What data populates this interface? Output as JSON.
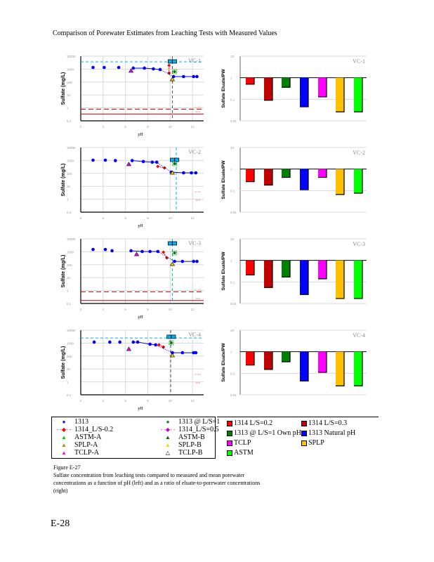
{
  "page_title": "Comparison of Porewater Estimates from Leaching Tests with Measured Values",
  "page_number": "E-28",
  "caption": {
    "figure": "Figure E-27",
    "text": "Sulfate concentration from leaching tests compared to measured and mean porewater concentrations as a function of pH (left) and as a ratio of eluate-to-porewater concentrations (right)"
  },
  "colors": {
    "1313": "#0000ff",
    "1314_02": "#ff0000",
    "1314_03": "#c00000",
    "own_ph": "#008000",
    "tclp": "#ff00ff",
    "splp": "#ffc000",
    "astm": "#00ff00",
    "porewater": "#00b0f0",
    "limits": "#c00000"
  },
  "legend_left": [
    {
      "label": "1313",
      "symbol": "●",
      "color": "#0000ff"
    },
    {
      "label": "1313 @ L/S=1",
      "symbol": "●",
      "color": "#008000"
    },
    {
      "label": "1314_L/S-0.2",
      "symbol": "- -◆- -",
      "color": "#ff0000"
    },
    {
      "label": "1314_L/S=0.5",
      "symbol": "- -◆- -",
      "color": "#cc00cc"
    },
    {
      "label": "ASTM-A",
      "symbol": "▲",
      "color": "#00cc00"
    },
    {
      "label": "ASTM-B",
      "symbol": "▲",
      "color": "#006000"
    },
    {
      "label": "SPLP-A",
      "symbol": "▲",
      "color": "#c08000"
    },
    {
      "label": "SPLP-B",
      "symbol": "▲",
      "color": "#e0e000"
    },
    {
      "label": "TCLP-A",
      "symbol": "▲",
      "color": "#ff00ff"
    },
    {
      "label": "TCLP-B",
      "symbol": "△",
      "color": "#000000"
    }
  ],
  "legend_right": [
    {
      "label": "1314 L/S=0.2",
      "color": "#ff0000"
    },
    {
      "label": "1314 L/S=0.3",
      "color": "#c00000"
    },
    {
      "label": "1313 @ L/S=1 Own pH",
      "color": "#008000"
    },
    {
      "label": "1313 Natural pH",
      "color": "#0000ff"
    },
    {
      "label": "TCLP",
      "color": "#ff00ff"
    },
    {
      "label": "SPLP",
      "color": "#ffc000"
    },
    {
      "label": "ASTM",
      "color": "#00ff00"
    }
  ],
  "chart_data": [
    {
      "type": "scatter",
      "panel": "VC-1",
      "xlabel": "pH",
      "ylabel": "Sulfate (mg/L)",
      "xlim": [
        2,
        13
      ],
      "ylim": [
        0.1,
        10000
      ],
      "yscale": "log",
      "grid": true,
      "x_ticks": [
        2,
        4,
        6,
        8,
        10,
        12
      ],
      "y_ticks": [
        0.1,
        1,
        10,
        100,
        1000,
        10000
      ],
      "measured_porewater": 3700,
      "natural_ph": 10.2,
      "loq": 0.8,
      "mdl": 0.34,
      "loq_label": "LLOQ",
      "mdl_label": "MDL",
      "series": [
        {
          "name": "1313",
          "points": [
            [
              3.1,
              1350
            ],
            [
              4.1,
              1350
            ],
            [
              5.4,
              1350
            ],
            [
              6.7,
              1200
            ],
            [
              7.7,
              1200
            ],
            [
              8.5,
              1050
            ],
            [
              9.1,
              930
            ],
            [
              10.3,
              265
            ],
            [
              11.2,
              265
            ],
            [
              12.1,
              265
            ],
            [
              12.4,
              265
            ]
          ]
        },
        {
          "name": "1314_L/S-0.2",
          "points": [
            [
              9.9,
              1950
            ],
            [
              9.9,
              500
            ]
          ]
        },
        {
          "name": "1313 @ L/S=1",
          "points": [
            [
              10.4,
              640
            ]
          ]
        },
        {
          "name": "TCLP-A",
          "points": [
            [
              6.5,
              730
            ]
          ]
        },
        {
          "name": "SPLP-B",
          "points": [
            [
              10.2,
              160
            ]
          ]
        },
        {
          "name": "porewater",
          "points": [
            [
              10.0,
              3700
            ],
            [
              10.4,
              3700
            ]
          ]
        }
      ]
    },
    {
      "type": "scatter",
      "panel": "VC-2",
      "xlabel": "pH",
      "ylabel": "Sulfate (mg/L)",
      "xlim": [
        2,
        13
      ],
      "ylim": [
        0.1,
        10000
      ],
      "yscale": "log",
      "grid": true,
      "x_ticks": [
        2,
        4,
        6,
        8,
        10,
        12
      ],
      "y_ticks": [
        0.1,
        1,
        10,
        100,
        1000,
        10000
      ],
      "measured_porewater": null,
      "natural_ph": 10.55,
      "loq": null,
      "mdl": null,
      "loq_label": "LLOQ",
      "mdl_label": "MDL",
      "series": [
        {
          "name": "1313",
          "points": [
            [
              3.1,
              1050
            ],
            [
              4.2,
              1050
            ],
            [
              5.1,
              980
            ],
            [
              6.6,
              980
            ],
            [
              7.6,
              820
            ],
            [
              8.4,
              730
            ],
            [
              8.8,
              730
            ],
            [
              10.1,
              125
            ],
            [
              11.2,
              110
            ],
            [
              11.9,
              110
            ],
            [
              12.3,
              110
            ]
          ]
        },
        {
          "name": "1314_L/S-0.2",
          "points": [
            [
              8.9,
              340
            ],
            [
              9.5,
              265
            ]
          ]
        },
        {
          "name": "1313 @ L/S=1",
          "points": [
            [
              10.4,
              560
            ]
          ]
        },
        {
          "name": "TCLP-A",
          "points": [
            [
              6.3,
              500
            ]
          ]
        },
        {
          "name": "SPLP-B",
          "points": [
            [
              10.2,
              110
            ]
          ]
        },
        {
          "name": "porewater",
          "points": [
            [
              10.2,
              1050
            ],
            [
              10.6,
              1050
            ]
          ]
        }
      ]
    },
    {
      "type": "scatter",
      "panel": "VC-3",
      "xlabel": "pH",
      "ylabel": "Sulfate (mg/L)",
      "xlim": [
        2,
        13
      ],
      "ylim": [
        0.1,
        10000
      ],
      "yscale": "log",
      "grid": true,
      "x_ticks": [
        2,
        4,
        6,
        8,
        10,
        12
      ],
      "y_ticks": [
        0.1,
        1,
        10,
        100,
        1000,
        10000
      ],
      "measured_porewater": null,
      "natural_ph": 10.2,
      "loq": 0.8,
      "mdl": 0.17,
      "loq_label": "LLOQ",
      "mdl_label": "MDL",
      "series": [
        {
          "name": "1313",
          "points": [
            [
              3.1,
              1500
            ],
            [
              4.2,
              1500
            ],
            [
              4.8,
              1200
            ],
            [
              6.5,
              1200
            ],
            [
              7.5,
              1050
            ],
            [
              8.2,
              1050
            ],
            [
              8.9,
              1050
            ],
            [
              10.4,
              180
            ],
            [
              11.1,
              180
            ],
            [
              12.1,
              180
            ],
            [
              12.4,
              180
            ]
          ]
        },
        {
          "name": "1314_L/S-0.2",
          "points": [
            [
              9.4,
              930
            ],
            [
              9.7,
              340
            ]
          ]
        },
        {
          "name": "1313 @ L/S=1",
          "points": [
            [
              10.4,
              820
            ]
          ]
        },
        {
          "name": "TCLP-A",
          "points": [
            [
              7.0,
              630
            ]
          ]
        },
        {
          "name": "SPLP-B",
          "points": [
            [
              10.2,
              110
            ]
          ]
        },
        {
          "name": "porewater",
          "points": [
            [
              10.0,
              4200
            ],
            [
              10.4,
              4200
            ]
          ]
        }
      ]
    },
    {
      "type": "scatter",
      "panel": "VC-4",
      "xlabel": "pH",
      "ylabel": "Sulfate (mg/L)",
      "xlim": [
        2,
        13
      ],
      "ylim": [
        0.1,
        10000
      ],
      "yscale": "log",
      "grid": true,
      "x_ticks": [
        2,
        4,
        6,
        8,
        10,
        12
      ],
      "y_ticks": [
        0.1,
        1,
        10,
        100,
        1000,
        10000
      ],
      "measured_porewater": 2500,
      "natural_ph": 10.05,
      "loq": null,
      "mdl": null,
      "loq_label": "LLOQ",
      "mdl_label": "MDL",
      "series": [
        {
          "name": "1313",
          "points": [
            [
              3.2,
              1200
            ],
            [
              4.6,
              1200
            ],
            [
              5.5,
              1200
            ],
            [
              6.7,
              1200
            ],
            [
              7.1,
              1200
            ],
            [
              8.2,
              820
            ],
            [
              8.7,
              730
            ],
            [
              10.2,
              180
            ],
            [
              11.1,
              180
            ],
            [
              12.1,
              180
            ],
            [
              12.3,
              180
            ]
          ]
        },
        {
          "name": "1314_L/S-0.2",
          "points": [
            [
              9.0,
              730
            ],
            [
              9.4,
              500
            ]
          ]
        },
        {
          "name": "1313 @ L/S=1",
          "points": [
            [
              10.1,
              1050
            ]
          ]
        },
        {
          "name": "TCLP-A",
          "points": [
            [
              6.3,
              340
            ]
          ]
        },
        {
          "name": "SPLP-B",
          "points": [
            [
              10.2,
              110
            ]
          ]
        },
        {
          "name": "porewater",
          "points": [
            [
              9.9,
              2900
            ],
            [
              10.3,
              2900
            ]
          ]
        }
      ]
    },
    {
      "type": "bar",
      "panel": "VC-1",
      "ylabel": "Sulfate Eluate/PW",
      "yscale": "log",
      "ylim": [
        0.01,
        10
      ],
      "baseline": 1,
      "y_ticks": [
        0.01,
        0.1,
        1,
        10
      ],
      "categories": [
        "1314 L/S=0.2",
        "1314 L/S=0.3",
        "1313 @ L/S=1 Own pH",
        "1313 Natural pH",
        "TCLP",
        "SPLP",
        "ASTM"
      ],
      "values": [
        0.5,
        0.09,
        0.36,
        0.045,
        0.13,
        0.026,
        0.026
      ]
    },
    {
      "type": "bar",
      "panel": "VC-2",
      "ylabel": "Sulfate Eluate/PW",
      "yscale": "log",
      "ylim": [
        0.01,
        10
      ],
      "baseline": 1,
      "y_ticks": [
        0.01,
        0.1,
        1,
        10
      ],
      "categories": [
        "1314 L/S=0.2",
        "1314 L/S=0.3",
        "1313 @ L/S=1 Own pH",
        "1313 Natural pH",
        "TCLP",
        "SPLP",
        "ASTM"
      ],
      "values": [
        0.26,
        0.18,
        0.41,
        0.11,
        0.41,
        0.066,
        0.076
      ]
    },
    {
      "type": "bar",
      "panel": "VC-3",
      "ylabel": "Sulfate Eluate/PW",
      "yscale": "log",
      "ylim": [
        0.01,
        10
      ],
      "baseline": 1,
      "y_ticks": [
        0.01,
        0.1,
        1,
        10
      ],
      "categories": [
        "1314 L/S=0.2",
        "1314 L/S=0.3",
        "1313 @ L/S=1 Own pH",
        "1313 Natural pH",
        "TCLP",
        "SPLP",
        "ASTM"
      ],
      "values": [
        0.21,
        0.055,
        0.17,
        0.026,
        0.14,
        0.017,
        0.017
      ]
    },
    {
      "type": "bar",
      "panel": "VC-4",
      "ylabel": "Sulfate Eluate/PW",
      "yscale": "log",
      "ylim": [
        0.01,
        10
      ],
      "baseline": 1,
      "y_ticks": [
        0.01,
        0.1,
        1,
        10
      ],
      "categories": [
        "1314 L/S=0.2",
        "1314 L/S=0.3",
        "1313 @ L/S=1 Own pH",
        "1313 Natural pH",
        "TCLP",
        "SPLP",
        "ASTM"
      ],
      "values": [
        0.24,
        0.15,
        0.34,
        0.044,
        0.11,
        0.026,
        0.026
      ]
    }
  ]
}
